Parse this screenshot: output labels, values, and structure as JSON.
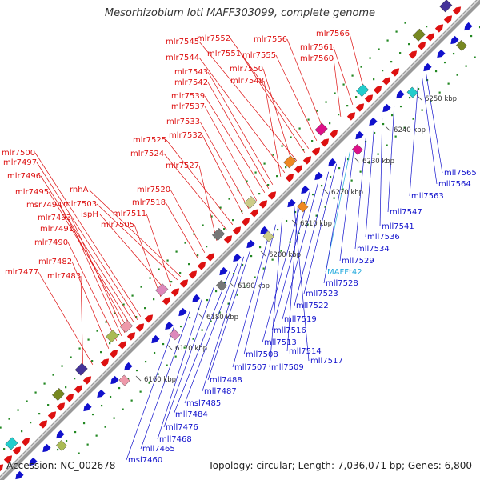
{
  "header": {
    "title": "Mesorhizobium loti MAFF303099, complete genome"
  },
  "footer": {
    "accession": "Accession: NC_002678",
    "stats": "Topology: circular; Length: 7,036,071 bp; Genes: 6,800"
  },
  "colors": {
    "forward": "#dd1111",
    "reverse": "#1111cc",
    "highlight": "#22aadd",
    "backbone": "#999999",
    "dots": "#228822"
  },
  "scale_ticks": [
    "6160 kbp",
    "6170 kbp",
    "6180 kbp",
    "6190 kbp",
    "6200 kbp",
    "6210 kbp",
    "6220 kbp",
    "6230 kbp",
    "6240 kbp",
    "6250 kbp"
  ],
  "top_labels": [
    "mlr7566",
    "mlr7561",
    "mlr7560",
    "mlr7556",
    "mlr7555",
    "mlr7552",
    "mlr7551",
    "mlr7545",
    "mlr7550",
    "mlr7544",
    "mlr7548",
    "mlr7543",
    "mlr7542",
    "mlr7539",
    "mlr7537",
    "mlr7533",
    "mlr7532",
    "mlr7525",
    "mlr7524",
    "mlr7527",
    "mlr7520",
    "mlr7518",
    "rnhA",
    "mlr7503",
    "mlr7511",
    "ispH",
    "mlr7505",
    "mlr7500",
    "mlr7497",
    "mlr7496",
    "mlr7495",
    "msr7494",
    "mlr7493",
    "mlr7491",
    "mlr7490",
    "mlr7482",
    "mlr7477",
    "mlr7483"
  ],
  "bottom_labels": [
    "mll7565",
    "mll7564",
    "mll7563",
    "mll7547",
    "mll7541",
    "mll7536",
    "mll7534",
    "mll7529",
    "MAFFt42",
    "mll7528",
    "mll7523",
    "mll7522",
    "mll7519",
    "mll7516",
    "mll7513",
    "mll7514",
    "mll7517",
    "mll7509",
    "mll7508",
    "mll7507",
    "mll7488",
    "mll7487",
    "msl7485",
    "mll7484",
    "mll7476",
    "mll7468",
    "mll7465",
    "msl7460"
  ]
}
